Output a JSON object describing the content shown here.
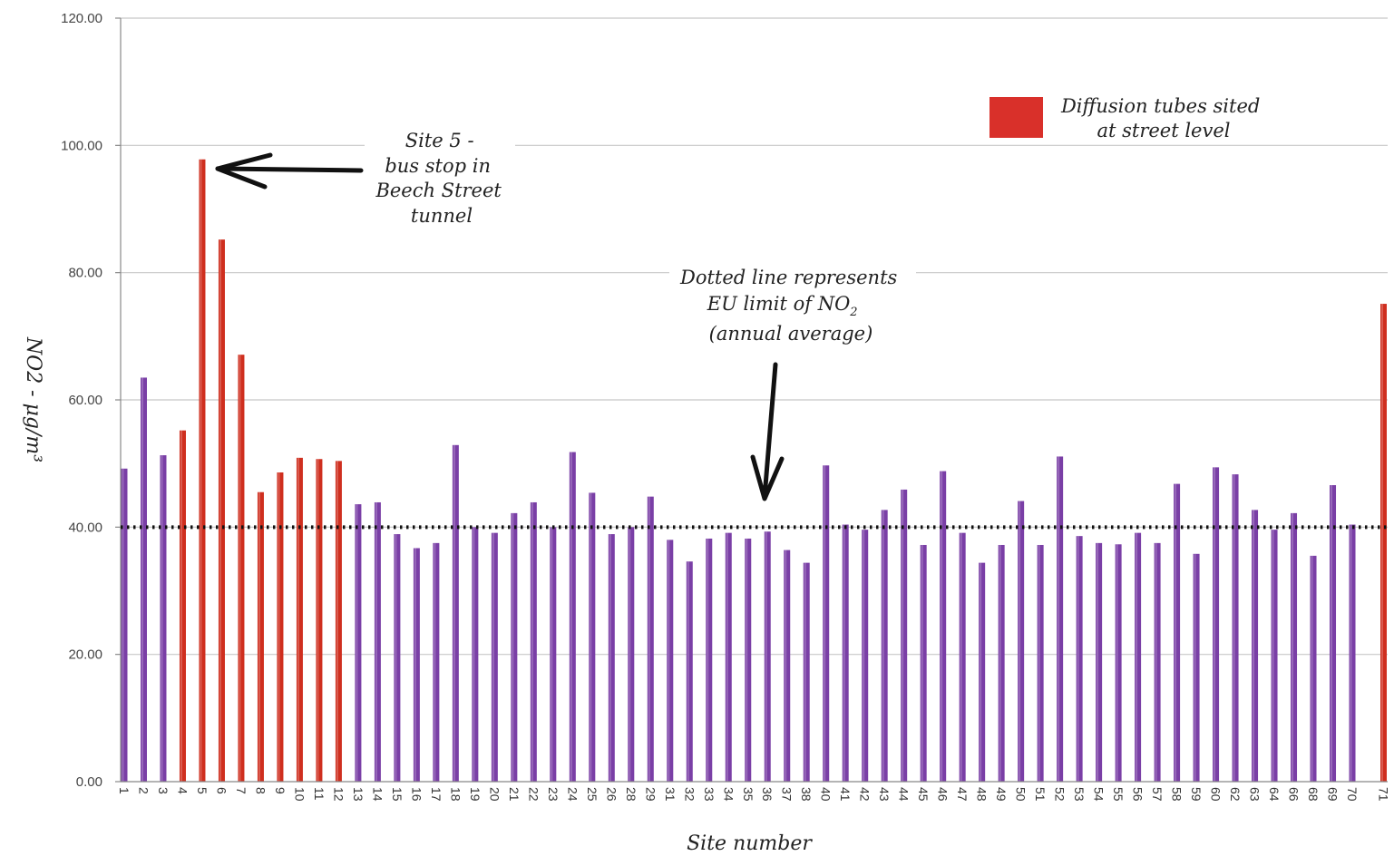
{
  "chart_data": {
    "type": "bar",
    "xlabel": "Site number",
    "ylabel": "NO2 - μg/m³",
    "ylim": [
      0,
      120
    ],
    "y_ticks": [
      "0.00",
      "20.00",
      "40.00",
      "60.00",
      "80.00",
      "100.00",
      "120.00"
    ],
    "grid": "horizontal",
    "categories": [
      "1",
      "2",
      "3",
      "4",
      "5",
      "6",
      "7",
      "8",
      "9",
      "10",
      "11",
      "12",
      "13",
      "14",
      "15",
      "16",
      "17",
      "18",
      "19",
      "20",
      "21",
      "22",
      "23",
      "24",
      "25",
      "26",
      "28",
      "29",
      "31",
      "32",
      "33",
      "34",
      "35",
      "36",
      "37",
      "38",
      "40",
      "41",
      "42",
      "43",
      "44",
      "45",
      "46",
      "47",
      "48",
      "49",
      "50",
      "51",
      "52",
      "53",
      "54",
      "55",
      "56",
      "57",
      "58",
      "59",
      "60",
      "62",
      "63",
      "64",
      "66",
      "68",
      "69",
      "70",
      "71"
    ],
    "values": [
      49.2,
      63.5,
      51.3,
      55.2,
      97.8,
      85.2,
      67.1,
      45.5,
      48.6,
      50.9,
      50.7,
      50.4,
      43.6,
      43.9,
      38.9,
      36.7,
      37.5,
      52.9,
      40.0,
      39.1,
      42.2,
      43.9,
      40.0,
      51.8,
      45.4,
      38.9,
      40.0,
      44.8,
      38.0,
      34.6,
      38.2,
      39.1,
      38.2,
      39.3,
      36.4,
      34.4,
      49.7,
      40.4,
      39.6,
      42.7,
      45.9,
      37.2,
      48.8,
      39.1,
      34.4,
      37.2,
      44.1,
      37.2,
      51.1,
      38.6,
      37.5,
      37.3,
      39.1,
      37.5,
      46.8,
      35.8,
      49.4,
      48.3,
      42.7,
      39.6,
      42.2,
      35.5,
      46.6,
      40.4,
      75.1
    ],
    "street_level_sites": [
      "4",
      "5",
      "6",
      "7",
      "8",
      "9",
      "10",
      "11",
      "12",
      "71"
    ],
    "colors": {
      "default": "#7a3fa6",
      "street": "#cf2f1f",
      "threshold": "#111111"
    },
    "threshold": 40,
    "legend": {
      "position": "top-right",
      "entries": [
        {
          "label_lines": [
            "Diffusion tubes sited",
            "at street level"
          ],
          "color": "#d9302a"
        }
      ]
    },
    "annotations": {
      "site5": [
        "Site 5 -",
        "bus stop in",
        "Beech Street",
        "tunnel"
      ],
      "eu_limit": [
        "Dotted line represents",
        "EU limit of NO",
        "(annual average)"
      ],
      "eu_limit_subscript": "2"
    }
  }
}
